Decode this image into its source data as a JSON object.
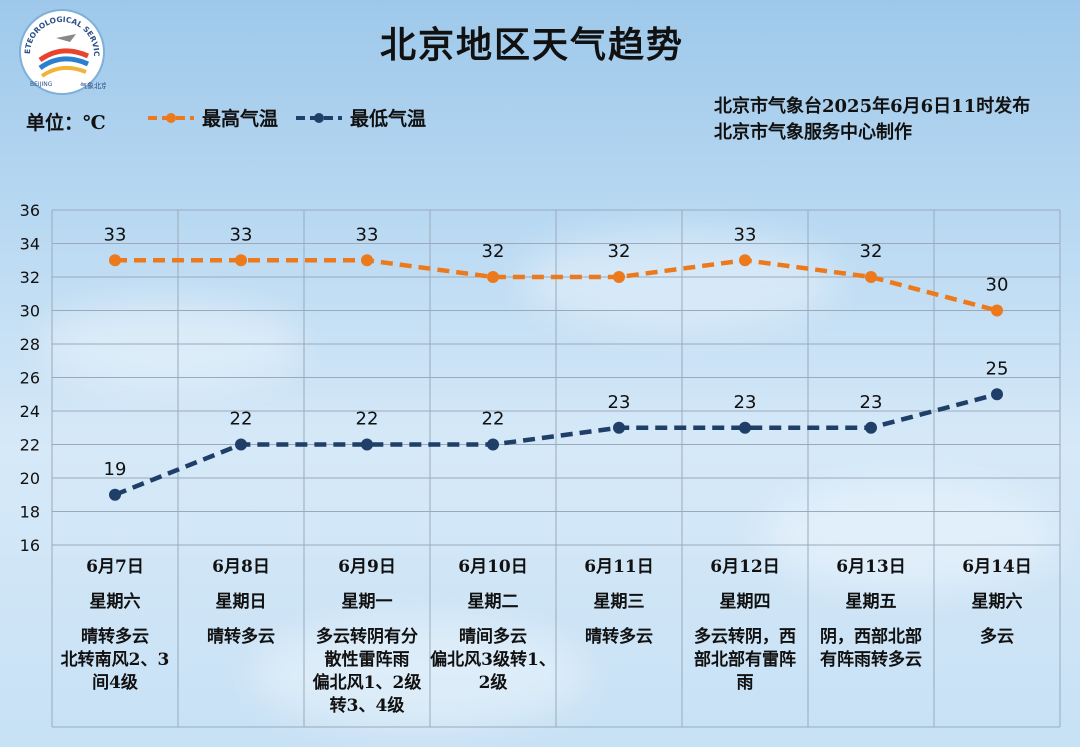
{
  "header": {
    "title": "北京地区天气趋势",
    "unit": "单位：℃",
    "issuer_line1": "北京市气象台2025年6月6日11时发布",
    "issuer_line2": "北京市气象服务中心制作"
  },
  "logo": {
    "arc_text": "METEOROLOGICAL SERVICE",
    "bottom_text": "气象北京",
    "side_text": "BEIJING"
  },
  "colors": {
    "high": "#ec7a1c",
    "low": "#1f3f68",
    "grid": "#9aaabb"
  },
  "chart_data": {
    "type": "line",
    "categories": [
      "6月7日",
      "6月8日",
      "6月9日",
      "6月10日",
      "6月11日",
      "6月12日",
      "6月13日",
      "6月14日"
    ],
    "weekdays": [
      "星期六",
      "星期日",
      "星期一",
      "星期二",
      "星期三",
      "星期四",
      "星期五",
      "星期六"
    ],
    "weather": [
      "晴转多云\n北转南风2、3\n间4级",
      "晴转多云",
      "多云转阴有分\n散性雷阵雨\n偏北风1、2级\n转3、4级",
      "晴间多云\n偏北风3级转1、\n2级",
      "晴转多云",
      "多云转阴，西\n部北部有雷阵\n雨",
      "阴，西部北部\n有阵雨转多云",
      "多云"
    ],
    "series": [
      {
        "name": "最高气温",
        "values": [
          33,
          33,
          33,
          32,
          32,
          33,
          32,
          30
        ]
      },
      {
        "name": "最低气温",
        "values": [
          19,
          22,
          22,
          22,
          23,
          23,
          23,
          25
        ]
      }
    ],
    "ylim": [
      16,
      36
    ],
    "yticks": [
      "16",
      "18",
      "20",
      "22",
      "24",
      "26",
      "28",
      "30",
      "32",
      "34",
      "36"
    ],
    "grid": true,
    "legend": "top-left"
  }
}
